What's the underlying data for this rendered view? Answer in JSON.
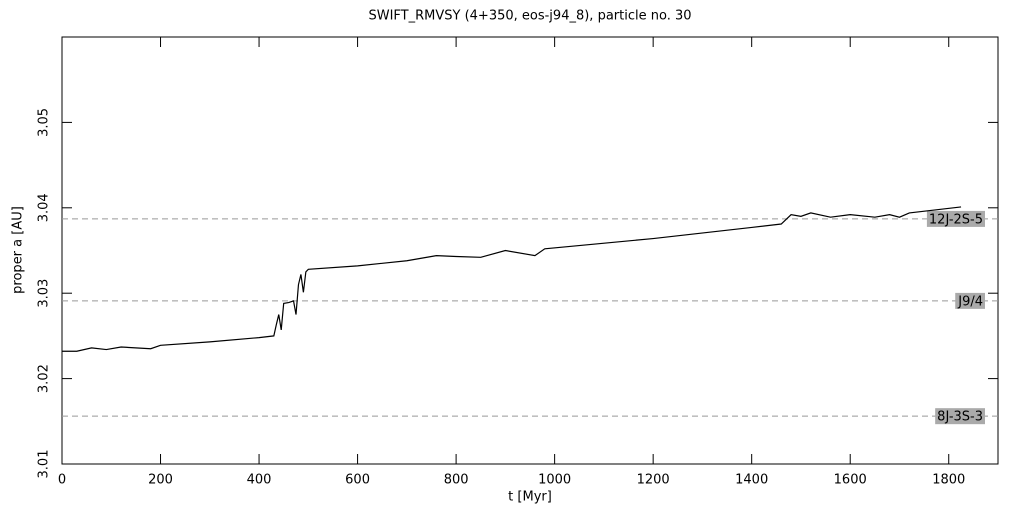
{
  "chart_data": {
    "type": "line",
    "title": "SWIFT_RMVSY (4+350, eos-j94_8), particle no. 30",
    "x_label": "t [Myr]",
    "y_label": "proper a [AU]",
    "xlim": [
      0,
      1900
    ],
    "ylim": [
      3.01,
      3.06
    ],
    "xticks": [
      0,
      200,
      400,
      600,
      800,
      1000,
      1200,
      1400,
      1600,
      1800
    ],
    "yticks": [
      3.01,
      3.02,
      3.03,
      3.04,
      3.05
    ],
    "series": [
      {
        "color": "#000000",
        "x": [
          0,
          30,
          60,
          90,
          120,
          180,
          200,
          300,
          400,
          430,
          435,
          440,
          445,
          450,
          460,
          470,
          475,
          480,
          485,
          490,
          495,
          500,
          600,
          700,
          760,
          800,
          850,
          900,
          960,
          980,
          1200,
          1400,
          1460,
          1480,
          1500,
          1520,
          1560,
          1600,
          1650,
          1680,
          1700,
          1720,
          1825
        ],
        "values": [
          3.0232,
          3.0232,
          3.0236,
          3.0234,
          3.0237,
          3.0235,
          3.0239,
          3.0243,
          3.0248,
          3.025,
          3.0263,
          3.0275,
          3.0257,
          3.0288,
          3.0289,
          3.0291,
          3.0275,
          3.031,
          3.0322,
          3.0301,
          3.0325,
          3.0328,
          3.0332,
          3.0338,
          3.0344,
          3.0343,
          3.0342,
          3.035,
          3.0344,
          3.0352,
          3.0364,
          3.0377,
          3.0381,
          3.0392,
          3.039,
          3.0394,
          3.0389,
          3.0392,
          3.0389,
          3.0392,
          3.0389,
          3.0394,
          3.0401
        ]
      }
    ],
    "reference_lines": [
      {
        "label": "12J-2S-5",
        "value": 3.0387
      },
      {
        "label": "J9/4",
        "value": 3.0291
      },
      {
        "label": "8J-3S-3",
        "value": 3.0156
      }
    ]
  }
}
